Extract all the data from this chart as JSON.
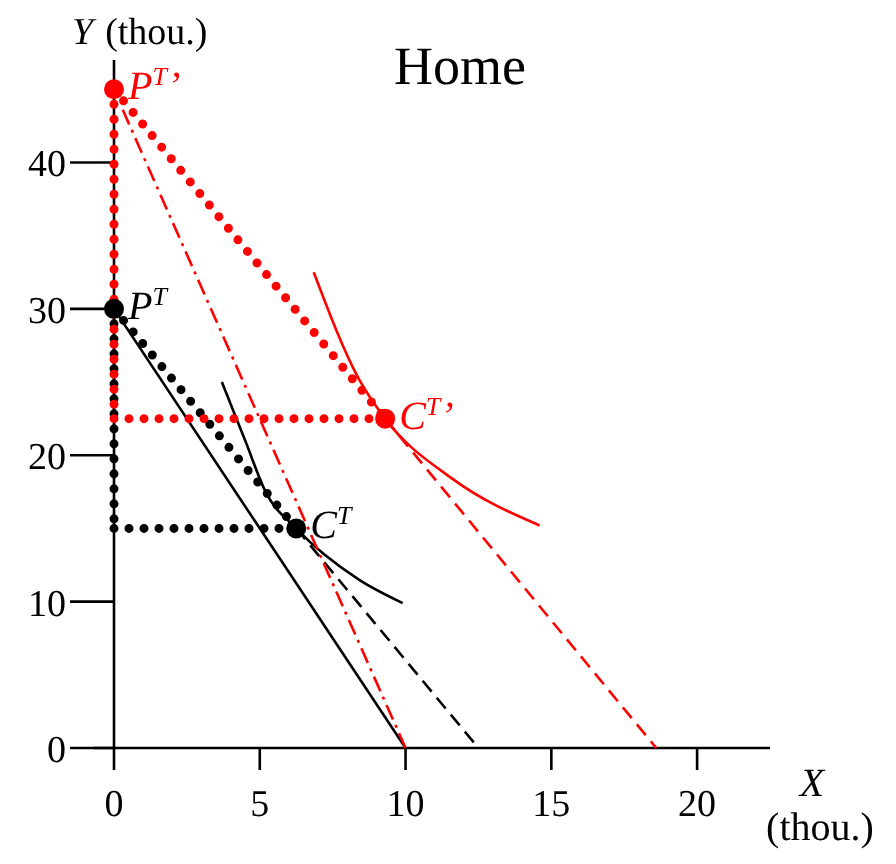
{
  "chart_data": {
    "type": "line",
    "title": "Home",
    "xlabel": "X (thou.)",
    "ylabel": "Y (thou.)",
    "xlim": [
      0,
      22.5
    ],
    "ylim": [
      0,
      47
    ],
    "xticks": [
      0,
      5,
      10,
      15,
      20
    ],
    "yticks": [
      0,
      10,
      20,
      30,
      40
    ],
    "grid": false,
    "series": [
      {
        "color": "#000000",
        "line_style": "solid",
        "x": [
          0,
          10
        ],
        "values": [
          30,
          0
        ]
      },
      {
        "color": "#000000",
        "line_style": "dotted",
        "x": [
          0,
          6.25
        ],
        "values": [
          30,
          15
        ]
      },
      {
        "color": "#000000",
        "line_style": "dashed",
        "x": [
          6.25,
          12.5
        ],
        "values": [
          15,
          0
        ]
      },
      {
        "color": "#000000",
        "line_style": "dotted",
        "x": [
          0,
          6.25
        ],
        "values": [
          15,
          15
        ]
      },
      {
        "color": "#000000",
        "line_style": "dotted",
        "x": [
          0,
          0
        ],
        "values": [
          30,
          15
        ]
      },
      {
        "color": "#000000",
        "line_style": "solid",
        "x": [
          3.7,
          4.5,
          5.2,
          6.25,
          8.4,
          9.9
        ],
        "values": [
          25,
          21,
          17.5,
          15,
          11.5,
          9.9
        ]
      },
      {
        "color": "#ff0000",
        "line_style": "dashdot",
        "x": [
          0.3,
          10
        ],
        "values": [
          43.6,
          0
        ]
      },
      {
        "color": "#ff0000",
        "line_style": "dotted",
        "x": [
          0,
          9.3
        ],
        "values": [
          45,
          22.5
        ]
      },
      {
        "color": "#ff0000",
        "line_style": "dashed",
        "x": [
          9.3,
          18.6
        ],
        "values": [
          22.5,
          0
        ]
      },
      {
        "color": "#ff0000",
        "line_style": "dotted",
        "x": [
          0,
          9.3
        ],
        "values": [
          22.5,
          22.5
        ]
      },
      {
        "color": "#ff0000",
        "line_style": "dotted",
        "x": [
          0,
          0
        ],
        "values": [
          45,
          22.5
        ]
      },
      {
        "color": "#ff0000",
        "line_style": "solid",
        "x": [
          6.85,
          8.4,
          9.3,
          11.6,
          14.6
        ],
        "values": [
          32.5,
          25.2,
          22.5,
          18.4,
          15.2
        ]
      },
      {
        "type": "scatter",
        "marker": "circle",
        "name": "P$^{T}$",
        "color": "#000000",
        "x": [
          0
        ],
        "values": [
          30
        ]
      },
      {
        "type": "scatter",
        "marker": "circle",
        "name": "C$^{T}$",
        "color": "#000000",
        "x": [
          6.25
        ],
        "values": [
          15
        ]
      },
      {
        "type": "scatter",
        "marker": "circle",
        "name": "P$^{T}$’",
        "color": "#ff0000",
        "x": [
          0
        ],
        "values": [
          45
        ]
      },
      {
        "type": "scatter",
        "marker": "circle",
        "name": "C$^{T}$’",
        "color": "#ff0000",
        "x": [
          9.3
        ],
        "values": [
          22.5
        ]
      }
    ]
  }
}
